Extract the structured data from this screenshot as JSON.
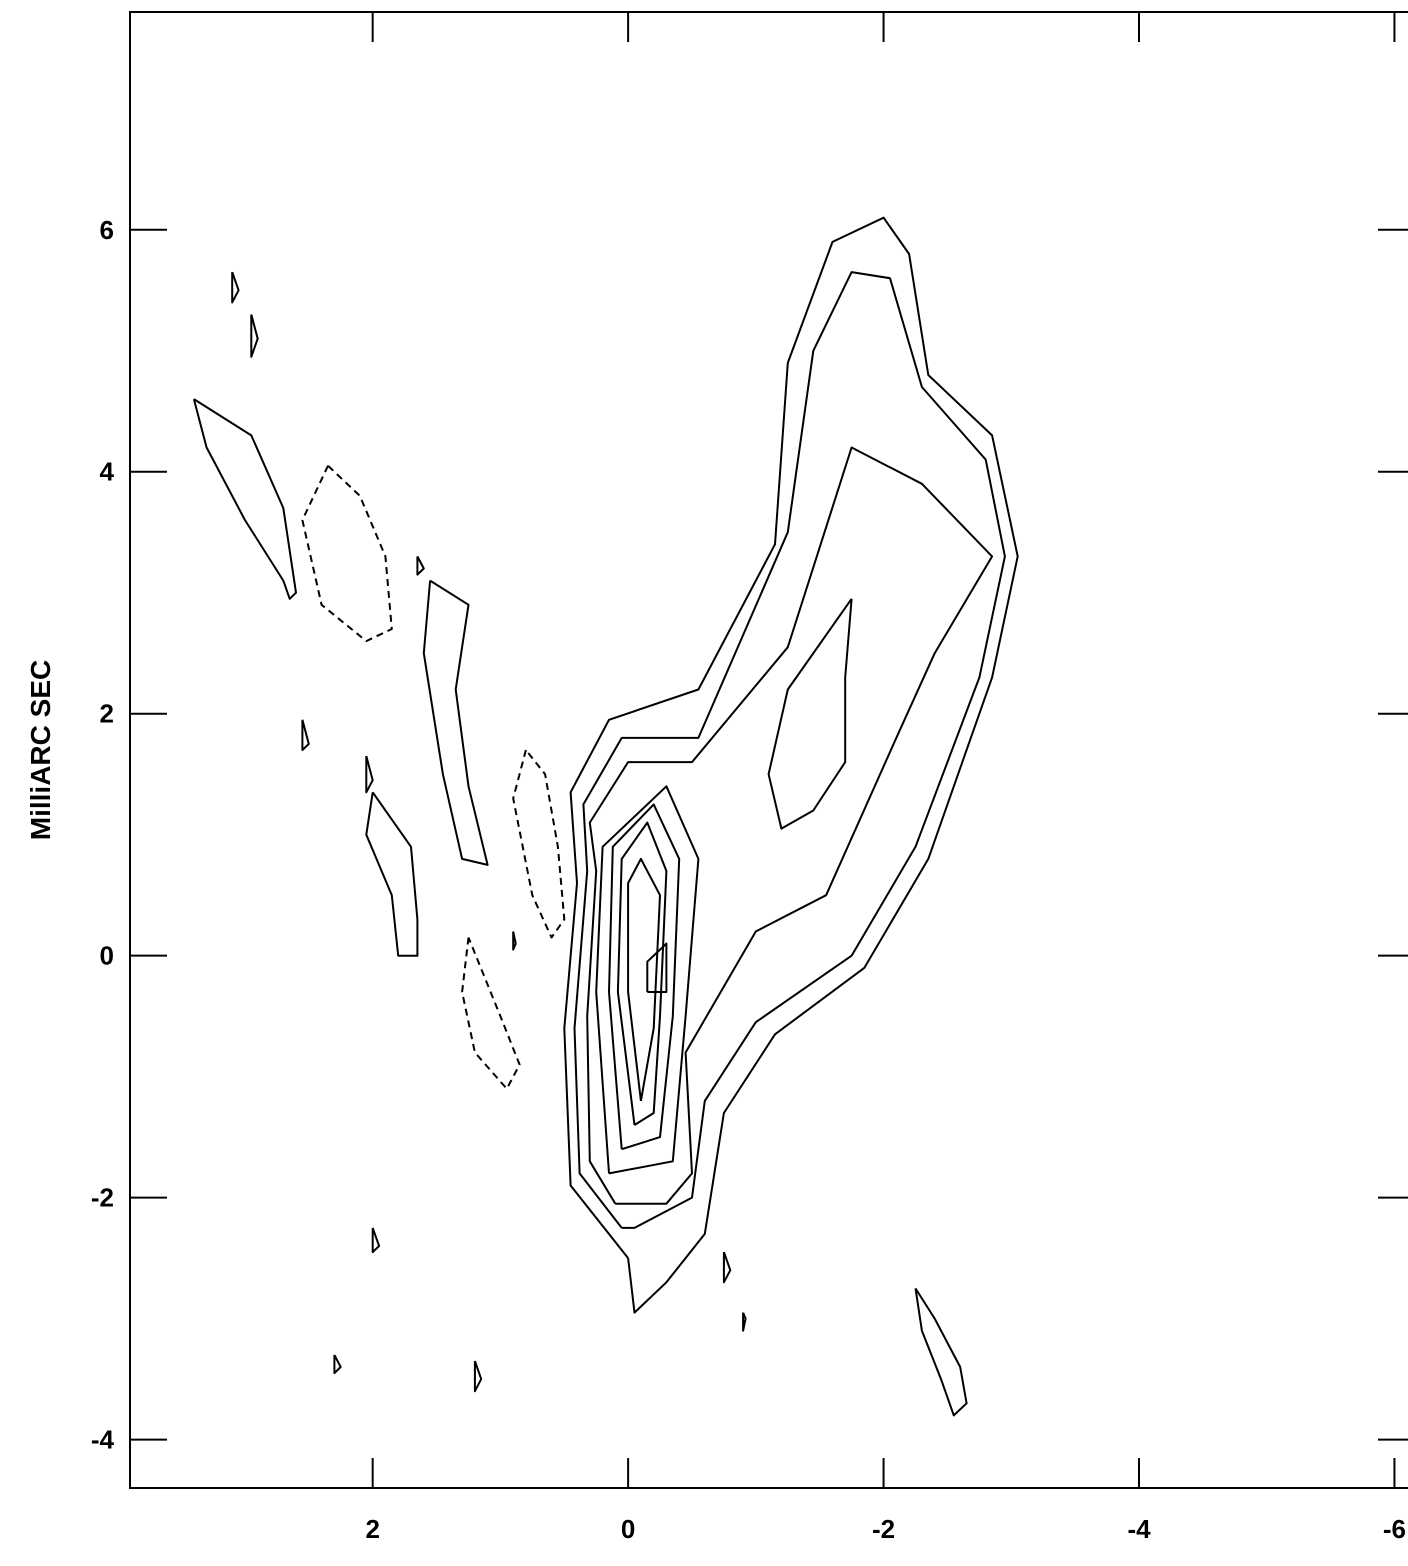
{
  "chart_data": {
    "type": "contour",
    "title": "",
    "xlabel": "",
    "ylabel": "MilliARC SEC",
    "xlim": [
      3.9,
      -6.2
    ],
    "ylim": [
      -4.4,
      7.8
    ],
    "x_ticks": [
      2,
      0,
      -2,
      -4,
      -6
    ],
    "y_ticks": [
      -4,
      -2,
      0,
      2,
      4,
      6
    ],
    "x_tick_labels": [
      "2",
      "0",
      "-2",
      "-4",
      "-6"
    ],
    "y_tick_labels": [
      "-4",
      "-2",
      "0",
      "2",
      "4",
      "6"
    ],
    "grid": false,
    "contours": [
      {
        "name": "c1",
        "negative": false,
        "points": [
          [
            0.0,
            -2.5
          ],
          [
            0.45,
            -1.9
          ],
          [
            0.5,
            -0.6
          ],
          [
            0.4,
            0.6
          ],
          [
            0.45,
            1.35
          ],
          [
            0.15,
            1.95
          ],
          [
            -0.55,
            2.2
          ],
          [
            -1.15,
            3.4
          ],
          [
            -1.25,
            4.9
          ],
          [
            -1.6,
            5.9
          ],
          [
            -2.0,
            6.1
          ],
          [
            -2.2,
            5.8
          ],
          [
            -2.35,
            4.8
          ],
          [
            -2.85,
            4.3
          ],
          [
            -3.05,
            3.3
          ],
          [
            -2.85,
            2.3
          ],
          [
            -2.35,
            0.8
          ],
          [
            -1.85,
            -0.1
          ],
          [
            -1.15,
            -0.65
          ],
          [
            -0.75,
            -1.3
          ],
          [
            -0.6,
            -2.3
          ],
          [
            -0.3,
            -2.7
          ],
          [
            -0.05,
            -2.95
          ],
          [
            0.0,
            -2.5
          ]
        ]
      },
      {
        "name": "c2",
        "negative": false,
        "points": [
          [
            0.05,
            -2.25
          ],
          [
            0.38,
            -1.8
          ],
          [
            0.42,
            -0.6
          ],
          [
            0.32,
            0.7
          ],
          [
            0.35,
            1.25
          ],
          [
            0.05,
            1.8
          ],
          [
            -0.55,
            1.8
          ],
          [
            -1.25,
            3.5
          ],
          [
            -1.45,
            5.0
          ],
          [
            -1.75,
            5.65
          ],
          [
            -2.05,
            5.6
          ],
          [
            -2.3,
            4.7
          ],
          [
            -2.8,
            4.1
          ],
          [
            -2.95,
            3.3
          ],
          [
            -2.75,
            2.3
          ],
          [
            -2.25,
            0.9
          ],
          [
            -1.75,
            0.0
          ],
          [
            -1.0,
            -0.55
          ],
          [
            -0.6,
            -1.2
          ],
          [
            -0.5,
            -2.0
          ],
          [
            -0.05,
            -2.25
          ],
          [
            0.05,
            -2.25
          ]
        ]
      },
      {
        "name": "c3",
        "negative": false,
        "points": [
          [
            0.1,
            -2.05
          ],
          [
            0.3,
            -1.7
          ],
          [
            0.32,
            -0.5
          ],
          [
            0.25,
            0.7
          ],
          [
            0.3,
            1.1
          ],
          [
            0.0,
            1.6
          ],
          [
            -0.5,
            1.6
          ],
          [
            -1.25,
            2.55
          ],
          [
            -1.75,
            4.2
          ],
          [
            -2.3,
            3.9
          ],
          [
            -2.85,
            3.3
          ],
          [
            -2.4,
            2.5
          ],
          [
            -2.1,
            1.8
          ],
          [
            -1.55,
            0.5
          ],
          [
            -1.0,
            0.2
          ],
          [
            -0.45,
            -0.8
          ],
          [
            -0.5,
            -1.8
          ],
          [
            -0.3,
            -2.05
          ],
          [
            0.1,
            -2.05
          ]
        ]
      },
      {
        "name": "c4",
        "negative": false,
        "points": [
          [
            0.15,
            -1.8
          ],
          [
            0.25,
            -0.3
          ],
          [
            0.2,
            0.9
          ],
          [
            -0.3,
            1.4
          ],
          [
            -0.55,
            0.8
          ],
          [
            -0.45,
            -0.5
          ],
          [
            -0.35,
            -1.7
          ],
          [
            0.15,
            -1.8
          ]
        ]
      },
      {
        "name": "c5",
        "negative": false,
        "points": [
          [
            -1.75,
            2.95
          ],
          [
            -1.7,
            2.3
          ],
          [
            -1.7,
            1.6
          ],
          [
            -1.45,
            1.2
          ],
          [
            -1.2,
            1.05
          ],
          [
            -1.1,
            1.5
          ],
          [
            -1.25,
            2.2
          ],
          [
            -1.75,
            2.95
          ]
        ]
      },
      {
        "name": "c6",
        "negative": false,
        "points": [
          [
            0.05,
            -1.6
          ],
          [
            0.15,
            -0.3
          ],
          [
            0.12,
            0.9
          ],
          [
            -0.2,
            1.25
          ],
          [
            -0.4,
            0.8
          ],
          [
            -0.35,
            -0.5
          ],
          [
            -0.25,
            -1.5
          ],
          [
            0.05,
            -1.6
          ]
        ]
      },
      {
        "name": "c7",
        "negative": false,
        "points": [
          [
            -0.05,
            -1.4
          ],
          [
            0.08,
            -0.3
          ],
          [
            0.05,
            0.8
          ],
          [
            -0.15,
            1.1
          ],
          [
            -0.3,
            0.7
          ],
          [
            -0.25,
            -0.5
          ],
          [
            -0.2,
            -1.3
          ],
          [
            -0.05,
            -1.4
          ]
        ]
      },
      {
        "name": "c8",
        "negative": false,
        "points": [
          [
            -0.1,
            -1.2
          ],
          [
            0.0,
            -0.3
          ],
          [
            0.0,
            0.6
          ],
          [
            -0.1,
            0.8
          ],
          [
            -0.25,
            0.5
          ],
          [
            -0.2,
            -0.6
          ],
          [
            -0.1,
            -1.2
          ]
        ]
      },
      {
        "name": "c9",
        "negative": false,
        "points": [
          [
            -0.15,
            -0.3
          ],
          [
            -0.15,
            -0.05
          ],
          [
            -0.3,
            0.1
          ],
          [
            -0.3,
            -0.3
          ],
          [
            -0.15,
            -0.3
          ]
        ]
      },
      {
        "name": "c10",
        "negative": false,
        "points": [
          [
            3.4,
            4.6
          ],
          [
            3.3,
            4.2
          ],
          [
            3.0,
            3.6
          ],
          [
            2.7,
            3.1
          ],
          [
            2.65,
            2.95
          ],
          [
            2.6,
            3.0
          ],
          [
            2.7,
            3.7
          ],
          [
            2.95,
            4.3
          ],
          [
            3.4,
            4.6
          ]
        ]
      },
      {
        "name": "c11",
        "negative": false,
        "points": [
          [
            1.55,
            3.1
          ],
          [
            1.6,
            2.5
          ],
          [
            1.45,
            1.5
          ],
          [
            1.3,
            0.8
          ],
          [
            1.1,
            0.75
          ],
          [
            1.25,
            1.4
          ],
          [
            1.35,
            2.2
          ],
          [
            1.25,
            2.9
          ],
          [
            1.55,
            3.1
          ]
        ]
      },
      {
        "name": "c12",
        "negative": false,
        "points": [
          [
            2.0,
            1.35
          ],
          [
            1.7,
            0.9
          ],
          [
            1.65,
            0.3
          ],
          [
            1.65,
            0.0
          ],
          [
            1.8,
            0.0
          ],
          [
            1.85,
            0.5
          ],
          [
            2.05,
            1.0
          ],
          [
            2.0,
            1.35
          ]
        ]
      },
      {
        "name": "c13",
        "negative": false,
        "points": [
          [
            -2.25,
            -2.75
          ],
          [
            -2.4,
            -3.0
          ],
          [
            -2.6,
            -3.4
          ],
          [
            -2.65,
            -3.7
          ],
          [
            -2.55,
            -3.8
          ],
          [
            -2.45,
            -3.5
          ],
          [
            -2.3,
            -3.1
          ],
          [
            -2.25,
            -2.75
          ]
        ]
      },
      {
        "name": "c14",
        "negative": true,
        "points": [
          [
            2.35,
            4.05
          ],
          [
            2.55,
            3.6
          ],
          [
            2.4,
            2.9
          ],
          [
            2.05,
            2.6
          ],
          [
            1.85,
            2.7
          ],
          [
            1.9,
            3.3
          ],
          [
            2.1,
            3.8
          ],
          [
            2.35,
            4.05
          ]
        ]
      },
      {
        "name": "c15",
        "negative": true,
        "points": [
          [
            0.8,
            1.7
          ],
          [
            0.9,
            1.3
          ],
          [
            0.75,
            0.5
          ],
          [
            0.6,
            0.15
          ],
          [
            0.5,
            0.3
          ],
          [
            0.55,
            0.9
          ],
          [
            0.65,
            1.5
          ],
          [
            0.8,
            1.7
          ]
        ]
      },
      {
        "name": "c16",
        "negative": true,
        "points": [
          [
            1.25,
            0.15
          ],
          [
            1.3,
            -0.3
          ],
          [
            1.2,
            -0.8
          ],
          [
            0.95,
            -1.1
          ],
          [
            0.85,
            -0.9
          ],
          [
            1.0,
            -0.5
          ],
          [
            1.25,
            0.15
          ]
        ]
      },
      {
        "name": "c17",
        "negative": false,
        "points": [
          [
            3.1,
            5.65
          ],
          [
            3.05,
            5.5
          ],
          [
            3.1,
            5.4
          ],
          [
            3.1,
            5.65
          ]
        ]
      },
      {
        "name": "c18",
        "negative": false,
        "points": [
          [
            2.95,
            5.3
          ],
          [
            2.9,
            5.1
          ],
          [
            2.95,
            4.95
          ],
          [
            2.95,
            5.3
          ]
        ]
      },
      {
        "name": "c19",
        "negative": false,
        "points": [
          [
            1.65,
            3.3
          ],
          [
            1.65,
            3.15
          ],
          [
            1.6,
            3.2
          ],
          [
            1.65,
            3.3
          ]
        ]
      },
      {
        "name": "c20",
        "negative": false,
        "points": [
          [
            2.55,
            1.95
          ],
          [
            2.5,
            1.75
          ],
          [
            2.55,
            1.7
          ],
          [
            2.55,
            1.95
          ]
        ]
      },
      {
        "name": "c21",
        "negative": false,
        "points": [
          [
            2.05,
            1.65
          ],
          [
            2.0,
            1.45
          ],
          [
            2.05,
            1.35
          ],
          [
            2.05,
            1.65
          ]
        ]
      },
      {
        "name": "c22",
        "negative": false,
        "points": [
          [
            0.9,
            0.2
          ],
          [
            0.9,
            0.05
          ],
          [
            0.88,
            0.1
          ],
          [
            0.9,
            0.2
          ]
        ]
      },
      {
        "name": "c23",
        "negative": false,
        "points": [
          [
            2.0,
            -2.25
          ],
          [
            1.95,
            -2.4
          ],
          [
            2.0,
            -2.45
          ],
          [
            2.0,
            -2.25
          ]
        ]
      },
      {
        "name": "c24",
        "negative": false,
        "points": [
          [
            1.2,
            -3.35
          ],
          [
            1.15,
            -3.5
          ],
          [
            1.2,
            -3.6
          ],
          [
            1.2,
            -3.35
          ]
        ]
      },
      {
        "name": "c25",
        "negative": false,
        "points": [
          [
            2.3,
            -3.3
          ],
          [
            2.25,
            -3.4
          ],
          [
            2.3,
            -3.45
          ],
          [
            2.3,
            -3.3
          ]
        ]
      },
      {
        "name": "c26",
        "negative": false,
        "points": [
          [
            -0.75,
            -2.45
          ],
          [
            -0.8,
            -2.6
          ],
          [
            -0.75,
            -2.7
          ],
          [
            -0.75,
            -2.45
          ]
        ]
      },
      {
        "name": "c27",
        "negative": false,
        "points": [
          [
            -0.9,
            -2.95
          ],
          [
            -0.9,
            -3.1
          ],
          [
            -0.92,
            -3.0
          ],
          [
            -0.9,
            -2.95
          ]
        ]
      }
    ]
  }
}
